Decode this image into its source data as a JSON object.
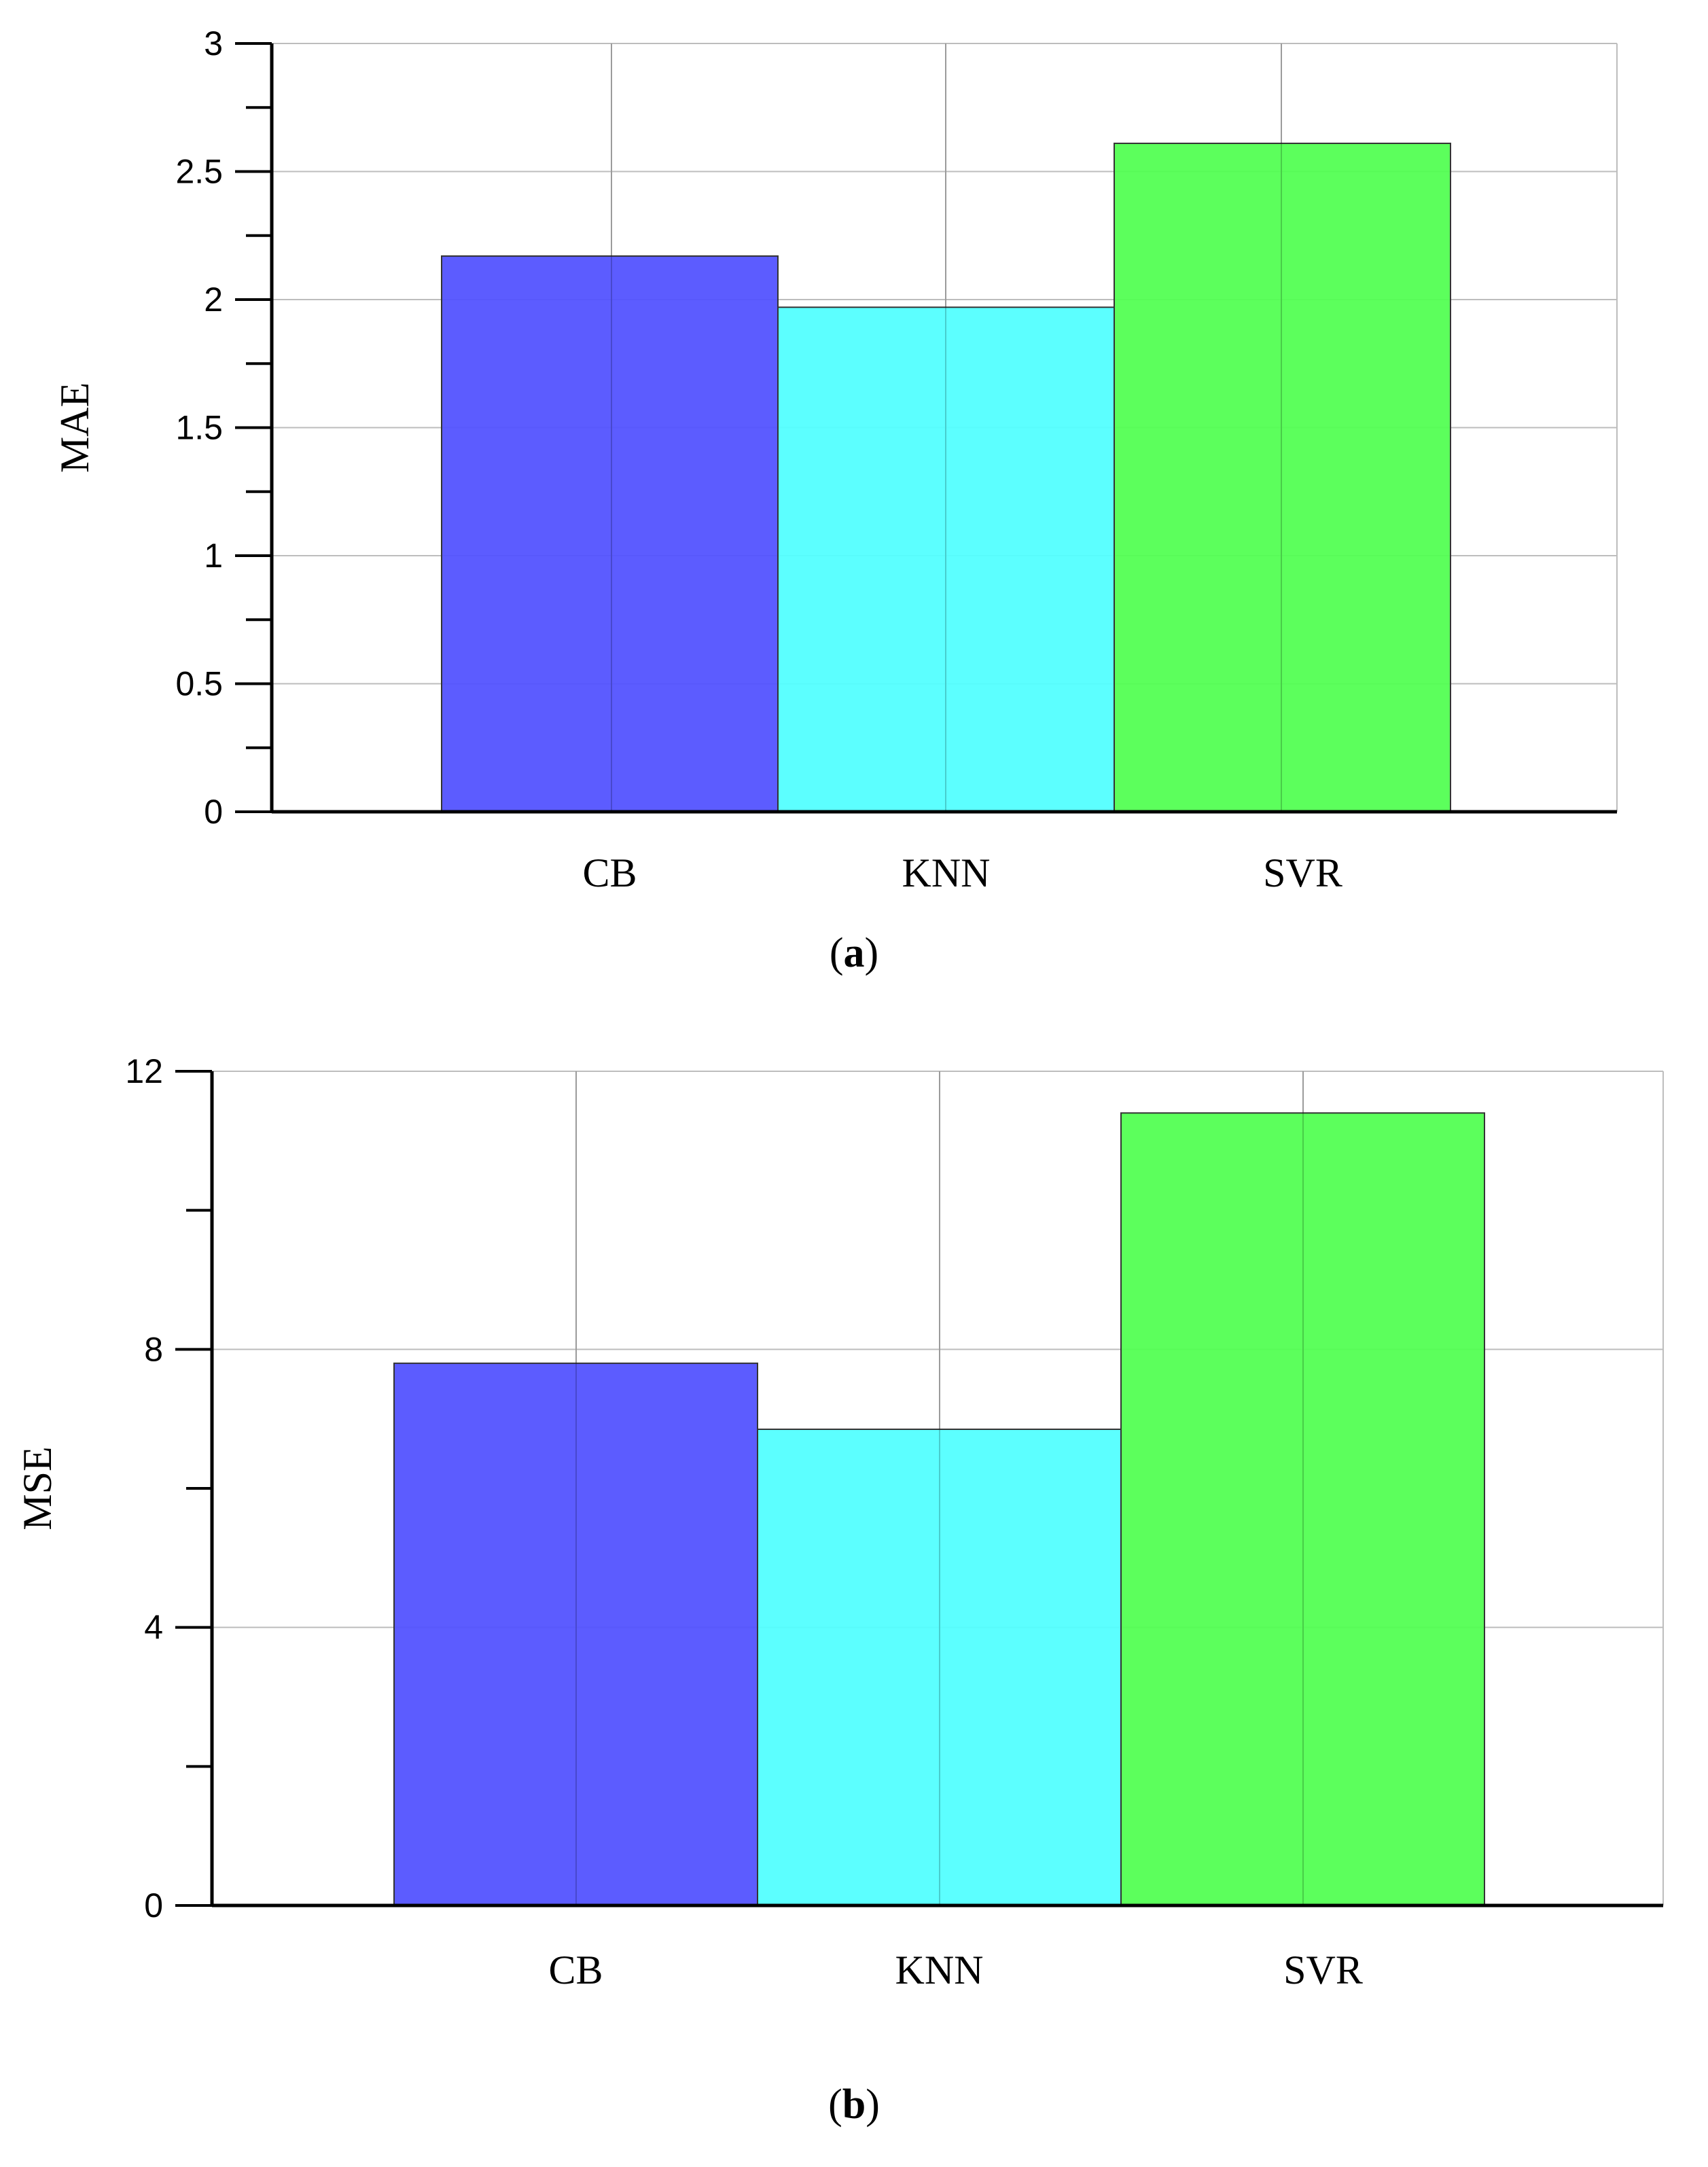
{
  "colors": {
    "CB": "#5050ff",
    "KNN": "#50ffff",
    "SVR": "#50ff50",
    "axis": "#000000",
    "grid": "#bdbdbd"
  },
  "chart_data": [
    {
      "id": "a",
      "type": "bar",
      "caption_letter": "a",
      "ylabel": "MAE",
      "xlabel": "",
      "categories": [
        "CB",
        "KNN",
        "SVR"
      ],
      "values": [
        2.17,
        1.97,
        2.61
      ],
      "ylim": [
        0,
        3
      ],
      "yticks": [
        0,
        0.5,
        1,
        1.5,
        2,
        2.5,
        3
      ],
      "ytick_labels": [
        "0",
        "0.5",
        "1",
        "1.5",
        "2",
        "2.5",
        "3"
      ],
      "grid": true
    },
    {
      "id": "b",
      "type": "bar",
      "caption_letter": "b",
      "ylabel": "MSE",
      "xlabel": "",
      "categories": [
        "CB",
        "KNN",
        "SVR"
      ],
      "values": [
        7.8,
        6.85,
        11.4
      ],
      "ylim": [
        0,
        12
      ],
      "yticks": [
        0,
        4,
        8,
        12
      ],
      "ytick_labels": [
        "0",
        "4",
        "8",
        "12"
      ],
      "grid": true
    }
  ]
}
